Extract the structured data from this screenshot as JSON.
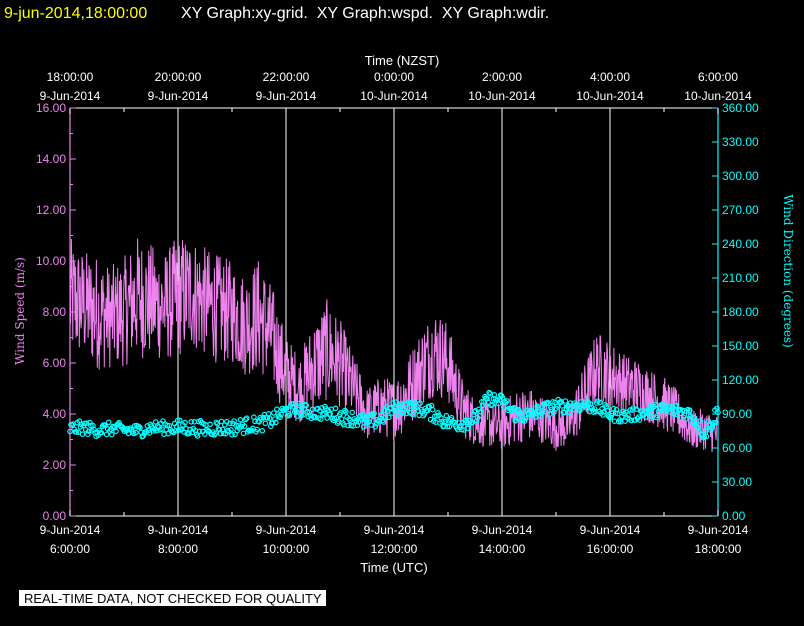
{
  "header": {
    "datetime": "9-jun-2014,18:00:00",
    "title": "XY Graph:xy-grid.  XY Graph:wspd.  XY Graph:wdir."
  },
  "disclaimer": "REAL-TIME DATA, NOT CHECKED FOR QUALITY",
  "colors": {
    "background": "#000000",
    "wind_speed": "#ee82ee",
    "wind_direction": "#00ffff",
    "grid": "#ffffff"
  },
  "chart_data": {
    "type": "line",
    "top_xlabel": "Time (NZST)",
    "bottom_xlabel": "Time (UTC)",
    "ylabel_left": "Wind Speed (m/s)",
    "ylabel_right": "Wind Direction (degrees)",
    "ylim_left": [
      0,
      16
    ],
    "ylim_right": [
      0,
      360
    ],
    "yticks_left": [
      "0.00",
      "2.00",
      "4.00",
      "6.00",
      "8.00",
      "10.00",
      "12.00",
      "14.00",
      "16.00"
    ],
    "yticks_right": [
      "0.00",
      "30.00",
      "60.00",
      "90.00",
      "120.00",
      "150.00",
      "180.00",
      "210.00",
      "240.00",
      "270.00",
      "300.00",
      "330.00",
      "360.00"
    ],
    "xrange_utc_hours": [
      6,
      18
    ],
    "top_ticks": [
      {
        "time": "18:00:00",
        "date": "9-Jun-2014"
      },
      {
        "time": "20:00:00",
        "date": "9-Jun-2014"
      },
      {
        "time": "22:00:00",
        "date": "9-Jun-2014"
      },
      {
        "time": "0:00:00",
        "date": "10-Jun-2014"
      },
      {
        "time": "2:00:00",
        "date": "10-Jun-2014"
      },
      {
        "time": "4:00:00",
        "date": "10-Jun-2014"
      },
      {
        "time": "6:00:00",
        "date": "10-Jun-2014"
      }
    ],
    "bottom_ticks": [
      {
        "date": "9-Jun-2014",
        "time": "6:00:00"
      },
      {
        "date": "9-Jun-2014",
        "time": "8:00:00"
      },
      {
        "date": "9-Jun-2014",
        "time": "10:00:00"
      },
      {
        "date": "9-Jun-2014",
        "time": "12:00:00"
      },
      {
        "date": "9-Jun-2014",
        "time": "14:00:00"
      },
      {
        "date": "9-Jun-2014",
        "time": "16:00:00"
      },
      {
        "date": "9-Jun-2014",
        "time": "18:00:00"
      }
    ],
    "grid": true,
    "series": [
      {
        "name": "wspd",
        "axis": "left",
        "style": "line",
        "x_utc_hours": [
          6.0,
          6.25,
          6.5,
          6.75,
          7.0,
          7.25,
          7.5,
          7.75,
          8.0,
          8.25,
          8.5,
          8.75,
          9.0,
          9.25,
          9.5,
          9.75,
          10.0,
          10.25,
          10.5,
          10.75,
          11.0,
          11.25,
          11.5,
          11.75,
          12.0,
          12.25,
          12.5,
          12.75,
          13.0,
          13.25,
          13.5,
          13.75,
          14.0,
          14.25,
          14.5,
          14.75,
          15.0,
          15.25,
          15.5,
          15.75,
          16.0,
          16.25,
          16.5,
          16.75,
          17.0,
          17.25,
          17.5,
          17.75,
          18.0
        ],
        "mean": [
          8.5,
          8.3,
          8.0,
          7.8,
          8.0,
          8.6,
          8.4,
          8.2,
          8.6,
          8.8,
          8.4,
          8.1,
          8.0,
          7.5,
          7.9,
          7.0,
          5.5,
          5.0,
          5.8,
          6.5,
          6.0,
          5.0,
          4.0,
          4.3,
          4.2,
          4.8,
          5.8,
          6.5,
          6.0,
          4.3,
          3.7,
          3.6,
          3.5,
          3.9,
          4.0,
          3.8,
          3.5,
          3.6,
          4.6,
          5.8,
          5.6,
          5.2,
          5.0,
          4.7,
          4.4,
          4.0,
          3.4,
          3.4,
          3.2
        ],
        "spread": [
          1.8,
          1.6,
          1.7,
          1.5,
          1.6,
          1.8,
          1.7,
          1.6,
          1.8,
          1.7,
          1.6,
          1.6,
          1.5,
          1.5,
          1.7,
          1.5,
          1.2,
          1.0,
          1.4,
          1.5,
          1.3,
          1.0,
          0.8,
          0.9,
          0.9,
          1.1,
          1.2,
          1.3,
          1.2,
          0.9,
          0.7,
          0.7,
          0.7,
          0.8,
          0.8,
          0.7,
          0.7,
          0.7,
          0.9,
          1.1,
          1.0,
          0.9,
          0.9,
          0.8,
          0.8,
          0.7,
          0.6,
          0.6,
          0.6
        ]
      },
      {
        "name": "wdir",
        "axis": "right",
        "style": "circles",
        "x_utc_hours": [
          6.0,
          6.25,
          6.5,
          6.75,
          7.0,
          7.25,
          7.5,
          7.75,
          8.0,
          8.25,
          8.5,
          8.75,
          9.0,
          9.25,
          9.5,
          9.75,
          10.0,
          10.25,
          10.5,
          10.75,
          11.0,
          11.25,
          11.5,
          11.75,
          12.0,
          12.25,
          12.5,
          12.75,
          13.0,
          13.25,
          13.5,
          13.75,
          14.0,
          14.25,
          14.5,
          14.75,
          15.0,
          15.25,
          15.5,
          15.75,
          16.0,
          16.25,
          16.5,
          16.75,
          17.0,
          17.25,
          17.5,
          17.75,
          18.0
        ],
        "mean": [
          77,
          78,
          76,
          77,
          76,
          75,
          78,
          78,
          78,
          78,
          77,
          78,
          78,
          80,
          81,
          85,
          93,
          94,
          91,
          91,
          88,
          86,
          82,
          86,
          95,
          96,
          94,
          90,
          82,
          82,
          86,
          104,
          101,
          90,
          88,
          94,
          97,
          97,
          98,
          96,
          90,
          88,
          90,
          92,
          94,
          93,
          90,
          73,
          92
        ],
        "spread": [
          6,
          6,
          6,
          6,
          6,
          6,
          6,
          6,
          7,
          7,
          7,
          7,
          7,
          7,
          7,
          7,
          6,
          6,
          6,
          6,
          7,
          7,
          7,
          7,
          6,
          6,
          6,
          7,
          7,
          7,
          7,
          6,
          6,
          7,
          7,
          6,
          6,
          6,
          6,
          6,
          6,
          6,
          6,
          6,
          6,
          6,
          6,
          7,
          8
        ]
      }
    ]
  }
}
